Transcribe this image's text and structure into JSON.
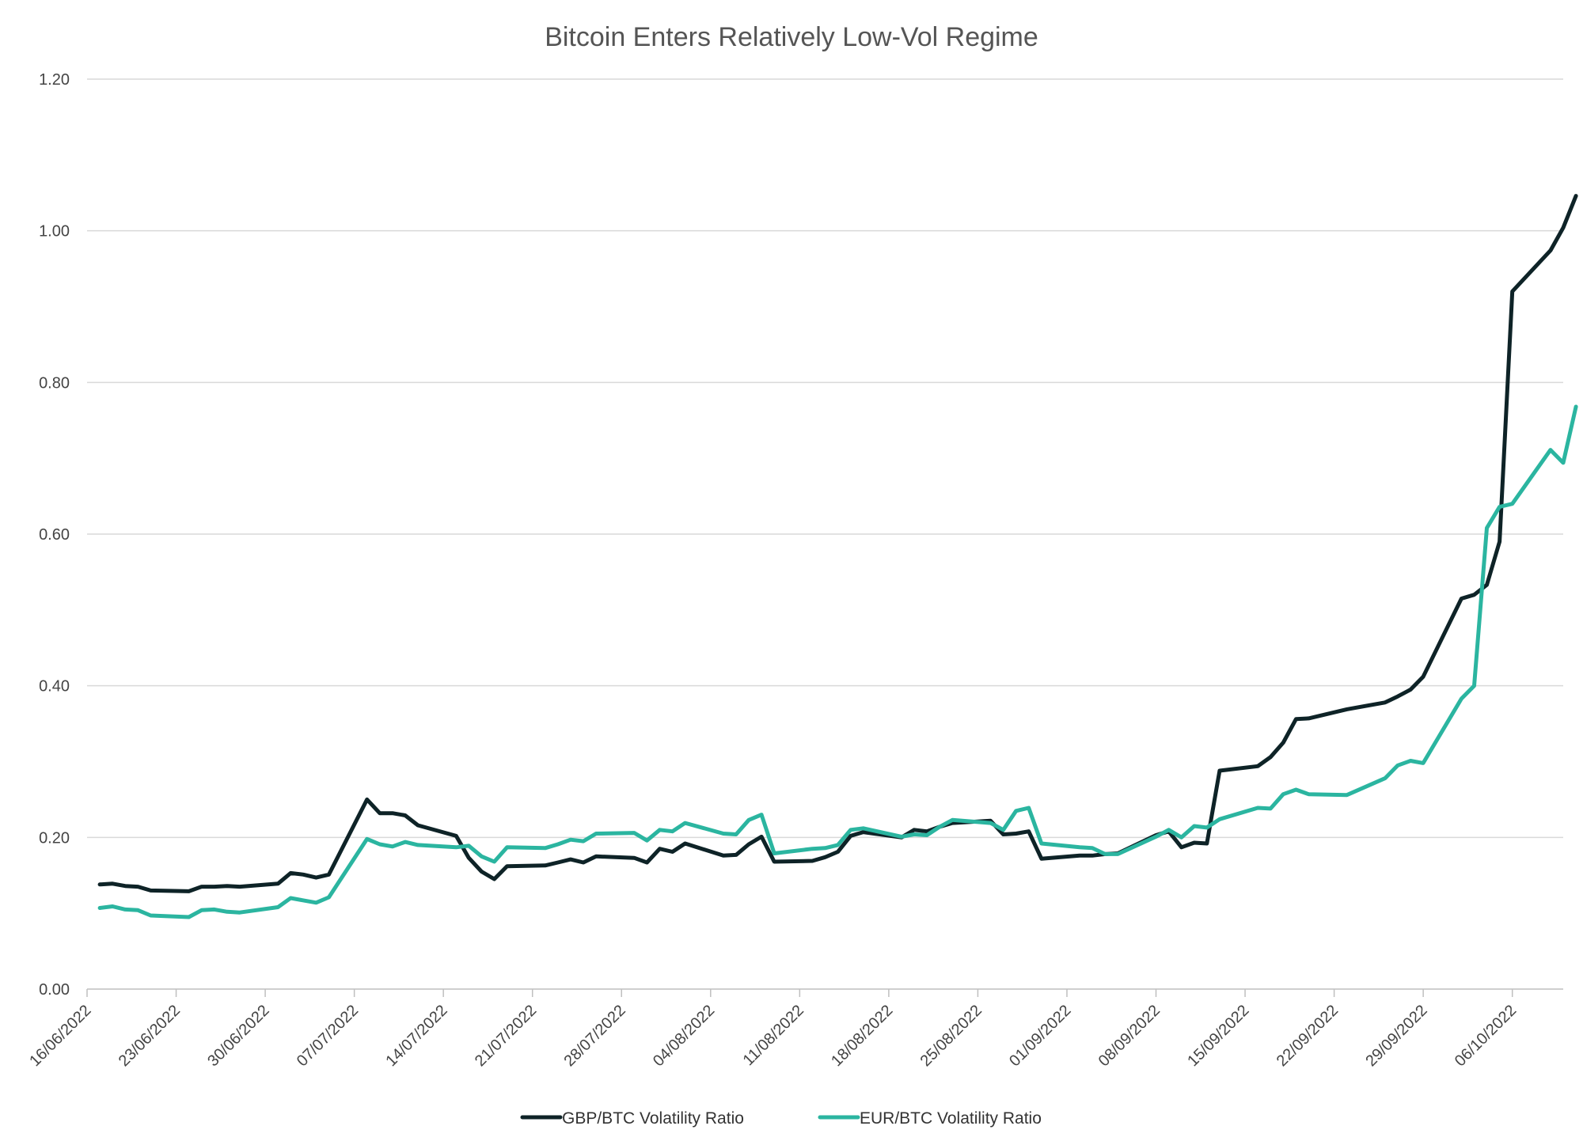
{
  "chart_data": {
    "type": "line",
    "title": "Bitcoin Enters Relatively Low-Vol Regime",
    "xlabel": "",
    "ylabel": "",
    "ylim": [
      0,
      1.2
    ],
    "yticks": [
      "0.00",
      "0.20",
      "0.40",
      "0.60",
      "0.80",
      "1.00",
      "1.20"
    ],
    "xlim": [
      "2022-06-16",
      "2022-10-10"
    ],
    "xticks": [
      "16/06/2022",
      "23/06/2022",
      "30/06/2022",
      "07/07/2022",
      "14/07/2022",
      "21/07/2022",
      "28/07/2022",
      "04/08/2022",
      "11/08/2022",
      "18/08/2022",
      "25/08/2022",
      "01/09/2022",
      "08/09/2022",
      "15/09/2022",
      "22/09/2022",
      "29/09/2022",
      "06/10/2022"
    ],
    "grid": true,
    "legend_position": "bottom",
    "series": [
      {
        "name": "GBP/BTC Volatility Ratio",
        "color": "#0e2327",
        "points": [
          [
            "2022-06-17",
            0.138
          ],
          [
            "2022-06-18",
            0.139
          ],
          [
            "2022-06-19",
            0.136
          ],
          [
            "2022-06-20",
            0.135
          ],
          [
            "2022-06-21",
            0.13
          ],
          [
            "2022-06-24",
            0.129
          ],
          [
            "2022-06-25",
            0.135
          ],
          [
            "2022-06-26",
            0.135
          ],
          [
            "2022-06-27",
            0.136
          ],
          [
            "2022-06-28",
            0.135
          ],
          [
            "2022-07-01",
            0.139
          ],
          [
            "2022-07-02",
            0.153
          ],
          [
            "2022-07-03",
            0.151
          ],
          [
            "2022-07-04",
            0.147
          ],
          [
            "2022-07-05",
            0.151
          ],
          [
            "2022-07-08",
            0.25
          ],
          [
            "2022-07-09",
            0.232
          ],
          [
            "2022-07-10",
            0.232
          ],
          [
            "2022-07-11",
            0.229
          ],
          [
            "2022-07-12",
            0.216
          ],
          [
            "2022-07-15",
            0.202
          ],
          [
            "2022-07-16",
            0.173
          ],
          [
            "2022-07-17",
            0.155
          ],
          [
            "2022-07-18",
            0.145
          ],
          [
            "2022-07-19",
            0.162
          ],
          [
            "2022-07-22",
            0.163
          ],
          [
            "2022-07-23",
            0.167
          ],
          [
            "2022-07-24",
            0.171
          ],
          [
            "2022-07-25",
            0.167
          ],
          [
            "2022-07-26",
            0.175
          ],
          [
            "2022-07-29",
            0.173
          ],
          [
            "2022-07-30",
            0.167
          ],
          [
            "2022-07-31",
            0.185
          ],
          [
            "2022-08-01",
            0.181
          ],
          [
            "2022-08-02",
            0.192
          ],
          [
            "2022-08-05",
            0.176
          ],
          [
            "2022-08-06",
            0.177
          ],
          [
            "2022-08-07",
            0.191
          ],
          [
            "2022-08-08",
            0.201
          ],
          [
            "2022-08-09",
            0.168
          ],
          [
            "2022-08-12",
            0.169
          ],
          [
            "2022-08-13",
            0.174
          ],
          [
            "2022-08-14",
            0.181
          ],
          [
            "2022-08-15",
            0.202
          ],
          [
            "2022-08-16",
            0.207
          ],
          [
            "2022-08-19",
            0.2
          ],
          [
            "2022-08-20",
            0.21
          ],
          [
            "2022-08-21",
            0.208
          ],
          [
            "2022-08-22",
            0.214
          ],
          [
            "2022-08-23",
            0.219
          ],
          [
            "2022-08-26",
            0.222
          ],
          [
            "2022-08-27",
            0.204
          ],
          [
            "2022-08-28",
            0.205
          ],
          [
            "2022-08-29",
            0.208
          ],
          [
            "2022-08-30",
            0.172
          ],
          [
            "2022-09-02",
            0.176
          ],
          [
            "2022-09-03",
            0.176
          ],
          [
            "2022-09-04",
            0.178
          ],
          [
            "2022-09-05",
            0.179
          ],
          [
            "2022-09-08",
            0.203
          ],
          [
            "2022-09-09",
            0.208
          ],
          [
            "2022-09-10",
            0.187
          ],
          [
            "2022-09-11",
            0.193
          ],
          [
            "2022-09-12",
            0.192
          ],
          [
            "2022-09-13",
            0.288
          ],
          [
            "2022-09-16",
            0.294
          ],
          [
            "2022-09-17",
            0.306
          ],
          [
            "2022-09-18",
            0.325
          ],
          [
            "2022-09-19",
            0.356
          ],
          [
            "2022-09-20",
            0.357
          ],
          [
            "2022-09-23",
            0.369
          ],
          [
            "2022-09-26",
            0.378
          ],
          [
            "2022-09-27",
            0.386
          ],
          [
            "2022-09-28",
            0.395
          ],
          [
            "2022-09-29",
            0.412
          ],
          [
            "2022-10-02",
            0.515
          ],
          [
            "2022-10-03",
            0.52
          ],
          [
            "2022-10-04",
            0.533
          ],
          [
            "2022-10-05",
            0.59
          ],
          [
            "2022-10-06",
            0.92
          ],
          [
            "2022-10-09",
            0.974
          ],
          [
            "2022-10-10",
            1.004
          ],
          [
            "2022-10-11",
            1.046
          ]
        ]
      },
      {
        "name": "EUR/BTC Volatility Ratio",
        "color": "#2bb5a0",
        "points": [
          [
            "2022-06-17",
            0.107
          ],
          [
            "2022-06-18",
            0.109
          ],
          [
            "2022-06-19",
            0.105
          ],
          [
            "2022-06-20",
            0.104
          ],
          [
            "2022-06-21",
            0.097
          ],
          [
            "2022-06-24",
            0.095
          ],
          [
            "2022-06-25",
            0.104
          ],
          [
            "2022-06-26",
            0.105
          ],
          [
            "2022-06-27",
            0.102
          ],
          [
            "2022-06-28",
            0.101
          ],
          [
            "2022-07-01",
            0.108
          ],
          [
            "2022-07-02",
            0.12
          ],
          [
            "2022-07-03",
            0.117
          ],
          [
            "2022-07-04",
            0.114
          ],
          [
            "2022-07-05",
            0.121
          ],
          [
            "2022-07-08",
            0.198
          ],
          [
            "2022-07-09",
            0.191
          ],
          [
            "2022-07-10",
            0.188
          ],
          [
            "2022-07-11",
            0.194
          ],
          [
            "2022-07-12",
            0.19
          ],
          [
            "2022-07-15",
            0.187
          ],
          [
            "2022-07-16",
            0.189
          ],
          [
            "2022-07-17",
            0.175
          ],
          [
            "2022-07-18",
            0.168
          ],
          [
            "2022-07-19",
            0.187
          ],
          [
            "2022-07-22",
            0.186
          ],
          [
            "2022-07-23",
            0.191
          ],
          [
            "2022-07-24",
            0.197
          ],
          [
            "2022-07-25",
            0.195
          ],
          [
            "2022-07-26",
            0.205
          ],
          [
            "2022-07-29",
            0.206
          ],
          [
            "2022-07-30",
            0.196
          ],
          [
            "2022-07-31",
            0.21
          ],
          [
            "2022-08-01",
            0.208
          ],
          [
            "2022-08-02",
            0.219
          ],
          [
            "2022-08-05",
            0.205
          ],
          [
            "2022-08-06",
            0.204
          ],
          [
            "2022-08-07",
            0.223
          ],
          [
            "2022-08-08",
            0.23
          ],
          [
            "2022-08-09",
            0.179
          ],
          [
            "2022-08-12",
            0.185
          ],
          [
            "2022-08-13",
            0.186
          ],
          [
            "2022-08-14",
            0.19
          ],
          [
            "2022-08-15",
            0.21
          ],
          [
            "2022-08-16",
            0.212
          ],
          [
            "2022-08-19",
            0.201
          ],
          [
            "2022-08-20",
            0.204
          ],
          [
            "2022-08-21",
            0.203
          ],
          [
            "2022-08-22",
            0.214
          ],
          [
            "2022-08-23",
            0.223
          ],
          [
            "2022-08-26",
            0.219
          ],
          [
            "2022-08-27",
            0.21
          ],
          [
            "2022-08-28",
            0.235
          ],
          [
            "2022-08-29",
            0.239
          ],
          [
            "2022-08-30",
            0.192
          ],
          [
            "2022-09-02",
            0.187
          ],
          [
            "2022-09-03",
            0.186
          ],
          [
            "2022-09-04",
            0.178
          ],
          [
            "2022-09-05",
            0.178
          ],
          [
            "2022-09-08",
            0.201
          ],
          [
            "2022-09-09",
            0.21
          ],
          [
            "2022-09-10",
            0.2
          ],
          [
            "2022-09-11",
            0.215
          ],
          [
            "2022-09-12",
            0.213
          ],
          [
            "2022-09-13",
            0.224
          ],
          [
            "2022-09-16",
            0.239
          ],
          [
            "2022-09-17",
            0.238
          ],
          [
            "2022-09-18",
            0.257
          ],
          [
            "2022-09-19",
            0.263
          ],
          [
            "2022-09-20",
            0.257
          ],
          [
            "2022-09-23",
            0.256
          ],
          [
            "2022-09-26",
            0.278
          ],
          [
            "2022-09-27",
            0.295
          ],
          [
            "2022-09-28",
            0.301
          ],
          [
            "2022-09-29",
            0.298
          ],
          [
            "2022-10-02",
            0.383
          ],
          [
            "2022-10-03",
            0.4
          ],
          [
            "2022-10-04",
            0.608
          ],
          [
            "2022-10-05",
            0.636
          ],
          [
            "2022-10-06",
            0.64
          ],
          [
            "2022-10-09",
            0.711
          ],
          [
            "2022-10-10",
            0.694
          ],
          [
            "2022-10-11",
            0.768
          ]
        ]
      }
    ]
  }
}
